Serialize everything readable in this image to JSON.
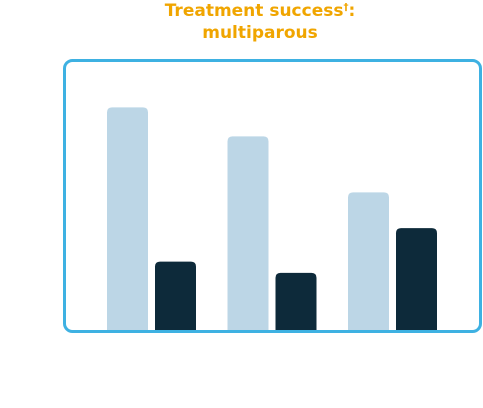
{
  "chart_data": {
    "type": "bar",
    "title_line1": "Treatment success",
    "title_marker": "†",
    "title_suffix": ":",
    "title_line2": "multiparous",
    "categories": [
      "",
      "",
      ""
    ],
    "series": [
      {
        "values": [
          100,
          87,
          62
        ],
        "color": "#bcd6e6"
      },
      {
        "values": [
          31,
          26,
          46
        ],
        "color": "#0d2a3a"
      }
    ],
    "ylim": [
      0,
      110
    ],
    "frame_color": "#3eb1e2",
    "title_color": "#f0a500",
    "grid": false
  }
}
